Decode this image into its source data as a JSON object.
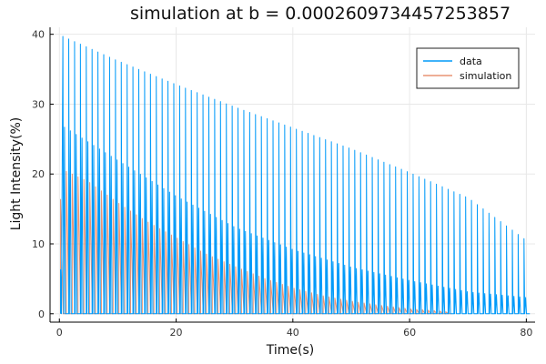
{
  "chart_data": {
    "type": "line",
    "title": "simulation at b = 0.0002609734457253857",
    "xlabel": "Time(s)",
    "ylabel": "Light Intensity(%)",
    "xlim": [
      -1.6,
      81.5
    ],
    "ylim": [
      -1.2,
      41
    ],
    "xticks": [
      0,
      20,
      40,
      60,
      80
    ],
    "yticks": [
      0,
      10,
      20,
      30,
      40
    ],
    "grid": true,
    "legend_position": "top-right",
    "pulse_period": 1.0,
    "series": [
      {
        "name": "data",
        "color": "#009af9",
        "t_start": 0.2,
        "t_end": 80.2,
        "upper_peaks": [
          [
            0.6,
            39.7
          ],
          [
            10,
            36.2
          ],
          [
            20,
            32.8
          ],
          [
            30,
            29.6
          ],
          [
            40,
            26.6
          ],
          [
            50,
            23.6
          ],
          [
            60,
            20.2
          ],
          [
            70,
            16.6
          ],
          [
            80,
            10.5
          ]
        ],
        "lower_peaks": [
          [
            0.6,
            26.7
          ],
          [
            10,
            21.8
          ],
          [
            20,
            16.7
          ],
          [
            30,
            12.3
          ],
          [
            40,
            9.1
          ],
          [
            50,
            6.6
          ],
          [
            60,
            4.7
          ],
          [
            70,
            3.1
          ],
          [
            80,
            2.3
          ]
        ],
        "first_spike": [
          0.2,
          6.3
        ]
      },
      {
        "name": "simulation",
        "color": "#e26f46",
        "t_start": 0.2,
        "t_end": 67,
        "peaks": [
          [
            0.1,
            15.3
          ],
          [
            0.6,
            20.6
          ],
          [
            5,
            18.9
          ],
          [
            10,
            15.9
          ],
          [
            15,
            13.2
          ],
          [
            20,
            10.9
          ],
          [
            25,
            8.6
          ],
          [
            30,
            6.8
          ],
          [
            35,
            5.1
          ],
          [
            40,
            3.7
          ],
          [
            45,
            2.6
          ],
          [
            50,
            1.8
          ],
          [
            55,
            1.2
          ],
          [
            60,
            0.7
          ],
          [
            65,
            0.4
          ],
          [
            67,
            0.2
          ]
        ]
      }
    ]
  }
}
